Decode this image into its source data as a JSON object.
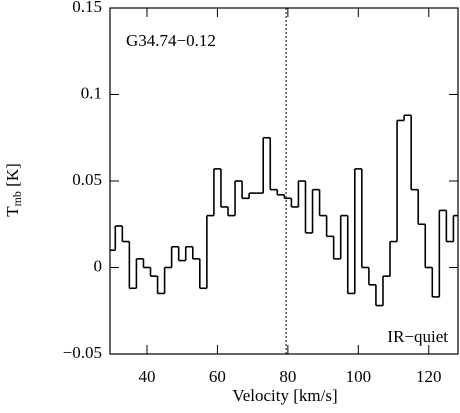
{
  "chart_data": {
    "type": "step",
    "annotations": [
      "G34.74−0.12",
      "IR−quiet"
    ],
    "xlabel": "Velocity [km/s]",
    "ylabel": [
      "T",
      "mb",
      " [K]"
    ],
    "x": [
      30,
      32,
      34,
      36,
      38,
      40,
      42,
      44,
      46,
      48,
      50,
      52,
      54,
      56,
      58,
      60,
      62,
      64,
      66,
      68,
      70,
      72,
      74,
      76,
      78,
      80,
      82,
      84,
      86,
      88,
      90,
      92,
      94,
      96,
      98,
      100,
      102,
      104,
      106,
      108,
      110,
      112,
      114,
      116,
      118,
      120,
      122,
      124,
      126,
      128
    ],
    "values": [
      0.01,
      0.024,
      0.015,
      -0.012,
      0.005,
      0.0,
      -0.005,
      -0.015,
      0.0,
      0.012,
      0.004,
      0.012,
      0.005,
      -0.012,
      0.03,
      0.057,
      0.035,
      0.03,
      0.05,
      0.04,
      0.043,
      0.043,
      0.075,
      0.045,
      0.042,
      0.04,
      0.035,
      0.05,
      0.02,
      0.045,
      0.03,
      0.018,
      0.005,
      0.03,
      -0.015,
      0.057,
      0.0,
      -0.01,
      -0.022,
      -0.005,
      0.015,
      0.085,
      0.088,
      0.045,
      0.025,
      0.0,
      -0.017,
      0.033,
      0.015,
      0.03
    ],
    "color": "#000000",
    "reference_line": 79.5,
    "xlim": [
      29.5,
      128.3
    ],
    "ylim": [
      -0.05,
      0.15
    ],
    "xticks": [
      40,
      60,
      80,
      100,
      120
    ],
    "yticks": [
      0.15,
      0.1,
      0.05,
      0,
      {
        "value": -0.05,
        "label": "−0.05"
      }
    ]
  }
}
